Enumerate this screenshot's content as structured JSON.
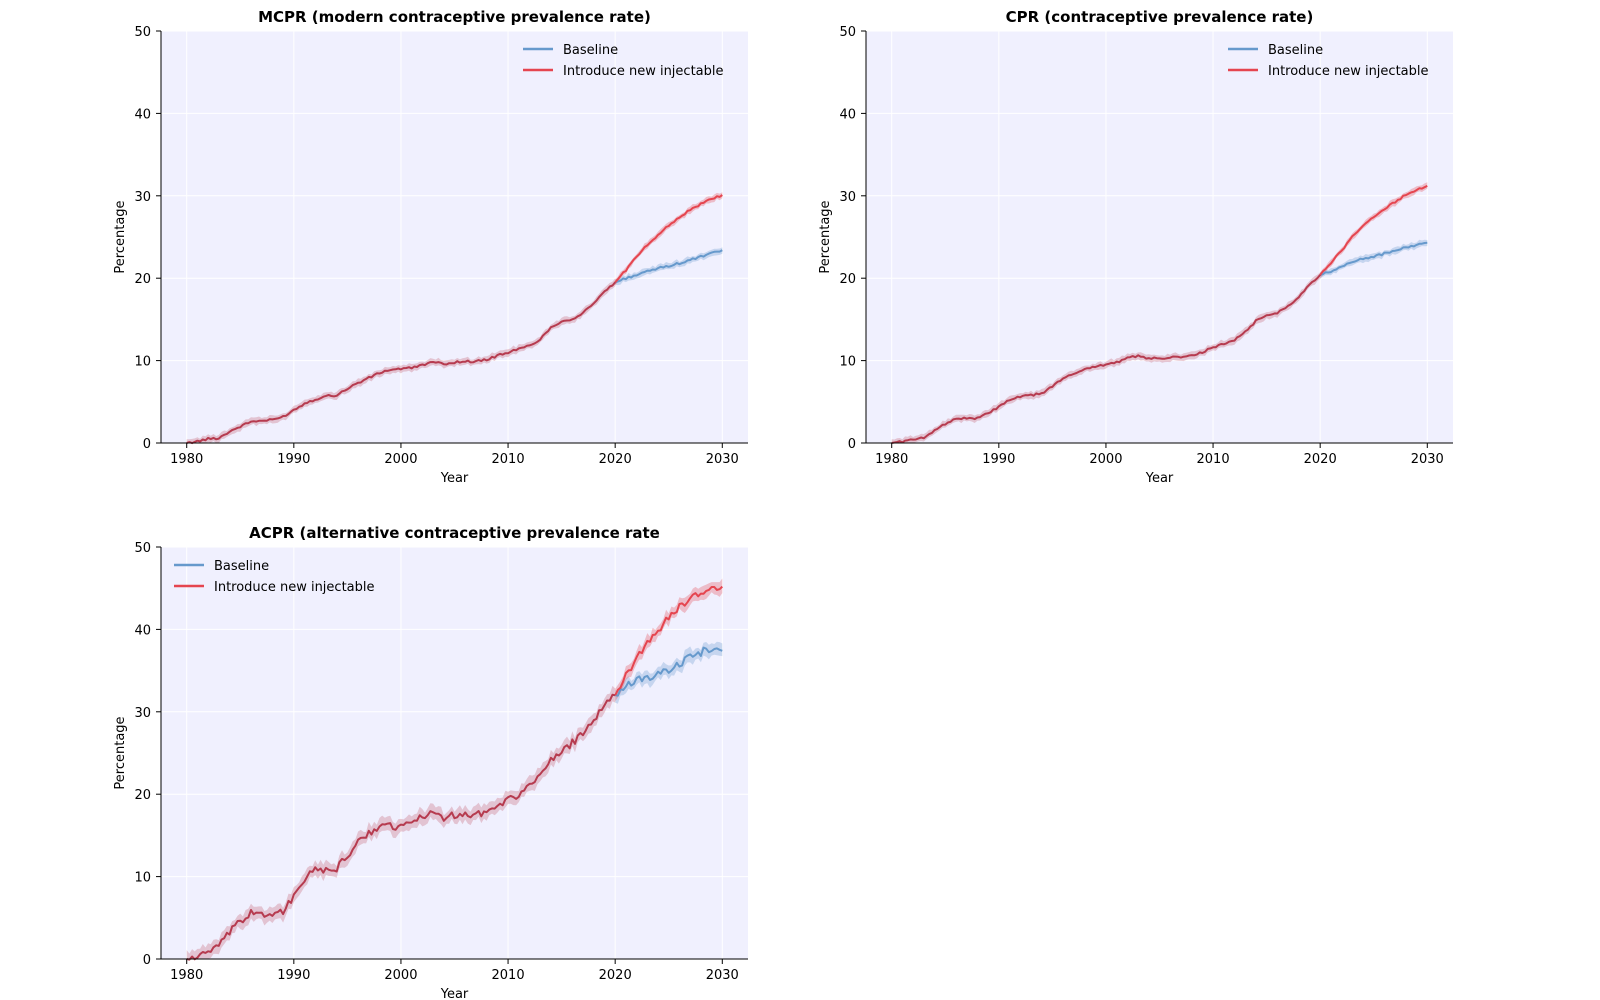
{
  "chart_data": [
    {
      "type": "line",
      "title": "MCPR (modern contraceptive prevalence rate)",
      "xlabel": "Year",
      "ylabel": "Percentage",
      "xlim": [
        1977.6,
        2032.4
      ],
      "ylim": [
        0,
        50
      ],
      "xticks": [
        1980,
        1990,
        2000,
        2010,
        2020,
        2030
      ],
      "yticks": [
        0,
        10,
        20,
        30,
        40,
        50
      ],
      "grid": true,
      "legend_position": "upper right",
      "background": "#f0f0fe",
      "shared_color": "#b63b4f",
      "shared_x": [
        1980,
        1981,
        1982,
        1983,
        1984,
        1985,
        1986,
        1987,
        1988,
        1989,
        1990,
        1991,
        1992,
        1993,
        1994,
        1995,
        1996,
        1997,
        1998,
        1999,
        2000,
        2001,
        2002,
        2003,
        2004,
        2005,
        2006,
        2007,
        2008,
        2009,
        2010,
        2011,
        2012,
        2013,
        2014,
        2015,
        2016,
        2017,
        2018,
        2019,
        2020
      ],
      "shared_y": [
        0,
        0.2,
        0.5,
        0.6,
        1.4,
        2.0,
        2.6,
        2.7,
        2.8,
        3.2,
        4.0,
        4.8,
        5.3,
        5.7,
        5.8,
        6.6,
        7.3,
        7.9,
        8.5,
        8.9,
        9.0,
        9.1,
        9.5,
        9.8,
        9.6,
        9.8,
        9.9,
        9.9,
        10.1,
        10.6,
        11.0,
        11.4,
        11.8,
        12.6,
        14.0,
        14.8,
        15.0,
        15.8,
        17.0,
        18.3,
        19.5
      ],
      "series": [
        {
          "name": "Baseline",
          "color": "#6699cc",
          "x": [
            2020,
            2021,
            2022,
            2023,
            2024,
            2025,
            2026,
            2027,
            2028,
            2029,
            2030
          ],
          "y": [
            19.5,
            20.0,
            20.4,
            20.8,
            21.2,
            21.5,
            21.8,
            22.2,
            22.6,
            23.0,
            23.4
          ]
        },
        {
          "name": "Introduce new injectable",
          "color": "#e5454f",
          "x": [
            2020,
            2021,
            2022,
            2023,
            2024,
            2025,
            2026,
            2027,
            2028,
            2029,
            2030
          ],
          "y": [
            19.5,
            21.0,
            22.6,
            24.0,
            25.3,
            26.4,
            27.4,
            28.3,
            29.0,
            29.6,
            30.1
          ]
        }
      ]
    },
    {
      "type": "line",
      "title": "CPR (contraceptive prevalence rate)",
      "xlabel": "Year",
      "ylabel": "Percentage",
      "xlim": [
        1977.6,
        2032.4
      ],
      "ylim": [
        0,
        50
      ],
      "xticks": [
        1980,
        1990,
        2000,
        2010,
        2020,
        2030
      ],
      "yticks": [
        0,
        10,
        20,
        30,
        40,
        50
      ],
      "grid": true,
      "legend_position": "upper right",
      "background": "#f0f0fe",
      "shared_color": "#b63b4f",
      "shared_x": [
        1980,
        1981,
        1982,
        1983,
        1984,
        1985,
        1986,
        1987,
        1988,
        1989,
        1990,
        1991,
        1992,
        1993,
        1994,
        1995,
        1996,
        1997,
        1998,
        1999,
        2000,
        2001,
        2002,
        2003,
        2004,
        2005,
        2006,
        2007,
        2008,
        2009,
        2010,
        2011,
        2012,
        2013,
        2014,
        2015,
        2016,
        2017,
        2018,
        2019,
        2020
      ],
      "shared_y": [
        0,
        0.2,
        0.4,
        0.6,
        1.6,
        2.3,
        3.0,
        3.0,
        3.0,
        3.6,
        4.4,
        5.2,
        5.6,
        5.8,
        6.0,
        6.9,
        7.8,
        8.4,
        9.0,
        9.3,
        9.5,
        9.8,
        10.3,
        10.6,
        10.2,
        10.3,
        10.4,
        10.4,
        10.6,
        11.0,
        11.6,
        12.0,
        12.5,
        13.5,
        14.8,
        15.5,
        15.8,
        16.6,
        17.8,
        19.2,
        20.4
      ],
      "series": [
        {
          "name": "Baseline",
          "color": "#6699cc",
          "x": [
            2020,
            2021,
            2022,
            2023,
            2024,
            2025,
            2026,
            2027,
            2028,
            2029,
            2030
          ],
          "y": [
            20.4,
            20.8,
            21.4,
            22.0,
            22.4,
            22.6,
            23.0,
            23.4,
            23.7,
            24.0,
            24.3
          ]
        },
        {
          "name": "Introduce new injectable",
          "color": "#e5454f",
          "x": [
            2020,
            2021,
            2022,
            2023,
            2024,
            2025,
            2026,
            2027,
            2028,
            2029,
            2030
          ],
          "y": [
            20.4,
            21.8,
            23.4,
            25.0,
            26.3,
            27.4,
            28.4,
            29.3,
            30.1,
            30.7,
            31.2
          ]
        }
      ]
    },
    {
      "type": "line",
      "title": "ACPR (alternative contraceptive prevalence rate",
      "xlabel": "Year",
      "ylabel": "Percentage",
      "xlim": [
        1977.6,
        2032.4
      ],
      "ylim": [
        0,
        50
      ],
      "xticks": [
        1980,
        1990,
        2000,
        2010,
        2020,
        2030
      ],
      "yticks": [
        0,
        10,
        20,
        30,
        40,
        50
      ],
      "grid": true,
      "legend_position": "upper left",
      "background": "#f0f0fe",
      "shared_color": "#b63b4f",
      "shared_x": [
        1980,
        1981,
        1982,
        1983,
        1984,
        1985,
        1986,
        1987,
        1988,
        1989,
        1990,
        1991,
        1992,
        1993,
        1994,
        1995,
        1996,
        1997,
        1998,
        1999,
        2000,
        2001,
        2002,
        2003,
        2004,
        2005,
        2006,
        2007,
        2008,
        2009,
        2010,
        2011,
        2012,
        2013,
        2014,
        2015,
        2016,
        2017,
        2018,
        2019,
        2020
      ],
      "shared_y": [
        0,
        0.3,
        0.8,
        1.5,
        3.2,
        4.5,
        5.6,
        5.5,
        5.5,
        5.8,
        7.6,
        9.6,
        10.8,
        10.7,
        11.0,
        12.5,
        14.2,
        15.3,
        16.0,
        16.2,
        16.0,
        16.6,
        17.3,
        17.6,
        17.2,
        17.5,
        17.6,
        17.6,
        17.9,
        18.4,
        19.4,
        20.0,
        21.0,
        22.5,
        24.0,
        25.0,
        26.2,
        27.6,
        29.2,
        30.6,
        32.0
      ],
      "series": [
        {
          "name": "Baseline",
          "color": "#6699cc",
          "x": [
            2020,
            2021,
            2022,
            2023,
            2024,
            2025,
            2026,
            2027,
            2028,
            2029,
            2030
          ],
          "y": [
            32.0,
            33.0,
            33.8,
            34.2,
            34.6,
            35.0,
            35.8,
            36.6,
            37.2,
            37.8,
            37.4
          ]
        },
        {
          "name": "Introduce new injectable",
          "color": "#e5454f",
          "x": [
            2020,
            2021,
            2022,
            2023,
            2024,
            2025,
            2026,
            2027,
            2028,
            2029,
            2030
          ],
          "y": [
            32.0,
            34.4,
            36.4,
            38.2,
            39.8,
            41.4,
            42.8,
            43.8,
            44.6,
            45.2,
            45.2
          ]
        }
      ]
    }
  ]
}
